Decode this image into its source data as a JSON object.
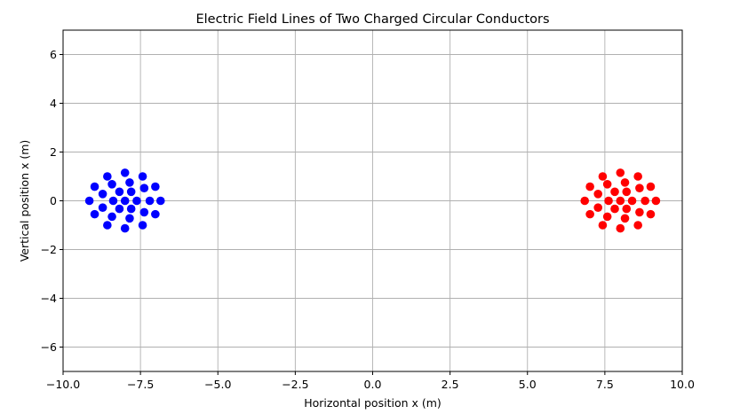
{
  "chart_data": {
    "type": "scatter",
    "title": "Electric Field Lines of Two Charged Circular Conductors",
    "xlabel": "Horizontal position x (m)",
    "ylabel": "Vertical position x (m)",
    "xlim": [
      -10,
      10
    ],
    "ylim": [
      -7,
      7
    ],
    "xticks": [
      -10,
      -7.5,
      -5,
      -2.5,
      0,
      2.5,
      5,
      7.5,
      10
    ],
    "xtick_labels": [
      "−10.0",
      "−7.5",
      "−5.0",
      "−2.5",
      "0.0",
      "2.5",
      "5.0",
      "7.5",
      "10.0"
    ],
    "yticks": [
      -6,
      -4,
      -2,
      0,
      2,
      4,
      6
    ],
    "ytick_labels": [
      "−6",
      "−4",
      "−2",
      "0",
      "2",
      "4",
      "6"
    ],
    "grid": true,
    "series": [
      {
        "color": "#0000ff",
        "points": [
          [
            -9.15,
            0.0
          ],
          [
            -8.98,
            0.58
          ],
          [
            -8.98,
            -0.55
          ],
          [
            -8.72,
            0.28
          ],
          [
            -8.72,
            -0.28
          ],
          [
            -8.57,
            1.0
          ],
          [
            -8.57,
            -1.0
          ],
          [
            -8.42,
            0.68
          ],
          [
            -8.42,
            -0.65
          ],
          [
            -8.38,
            0.0
          ],
          [
            -8.18,
            0.37
          ],
          [
            -8.18,
            -0.33
          ],
          [
            -8.0,
            1.15
          ],
          [
            -8.0,
            -1.13
          ],
          [
            -8.0,
            0.0
          ],
          [
            -7.85,
            0.75
          ],
          [
            -7.85,
            -0.72
          ],
          [
            -7.8,
            0.37
          ],
          [
            -7.8,
            -0.33
          ],
          [
            -7.62,
            0.0
          ],
          [
            -7.43,
            1.0
          ],
          [
            -7.43,
            -1.0
          ],
          [
            -7.38,
            0.52
          ],
          [
            -7.38,
            -0.47
          ],
          [
            -7.2,
            0.0
          ],
          [
            -7.02,
            0.58
          ],
          [
            -7.02,
            -0.55
          ],
          [
            -6.85,
            0.0
          ]
        ]
      },
      {
        "color": "#ff0000",
        "points": [
          [
            6.85,
            0.0
          ],
          [
            7.02,
            0.58
          ],
          [
            7.02,
            -0.55
          ],
          [
            7.28,
            0.28
          ],
          [
            7.28,
            -0.28
          ],
          [
            7.43,
            1.0
          ],
          [
            7.43,
            -1.0
          ],
          [
            7.58,
            0.68
          ],
          [
            7.58,
            -0.65
          ],
          [
            7.62,
            0.0
          ],
          [
            7.82,
            0.37
          ],
          [
            7.82,
            -0.33
          ],
          [
            8.0,
            1.15
          ],
          [
            8.0,
            -1.13
          ],
          [
            8.0,
            0.0
          ],
          [
            8.15,
            0.75
          ],
          [
            8.15,
            -0.72
          ],
          [
            8.2,
            0.37
          ],
          [
            8.2,
            -0.33
          ],
          [
            8.38,
            0.0
          ],
          [
            8.57,
            1.0
          ],
          [
            8.57,
            -1.0
          ],
          [
            8.62,
            0.52
          ],
          [
            8.62,
            -0.47
          ],
          [
            8.8,
            0.0
          ],
          [
            8.98,
            0.58
          ],
          [
            8.98,
            -0.55
          ],
          [
            9.15,
            0.0
          ]
        ]
      }
    ]
  }
}
